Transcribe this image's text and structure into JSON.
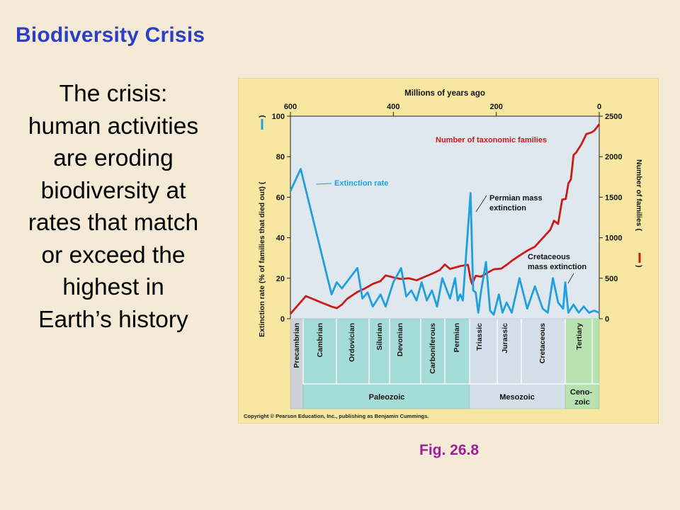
{
  "slide": {
    "title": "Biodiversity Crisis",
    "body_lines": [
      "The crisis:",
      "human activities",
      "are eroding",
      "biodiversity at",
      "rates that match",
      "or exceed the",
      "highest in",
      "Earth’s history"
    ],
    "caption": "Fig. 26.8"
  },
  "colors": {
    "title": "#2b3fc4",
    "caption": "#a0209a",
    "extinction_series": "#20a0dd",
    "families_series": "#cc1a1a",
    "figure_background": "#f7e7a1",
    "plot_background": "#dfe8ef",
    "paleozoic_band": "#a6dcd8",
    "mesozoic_band": "#d5dfe9",
    "cenozoic_band": "#b9e2b1",
    "precambrian_band": "#ccd2d6"
  },
  "chart_data": {
    "type": "line",
    "title": "",
    "top_axis": {
      "label": "Millions of years ago",
      "range": [
        600,
        0
      ],
      "ticks": [
        600,
        400,
        200,
        0
      ]
    },
    "left_axis": {
      "label": "Extinction rate (% of families that died out) (",
      "range": [
        0,
        100
      ],
      "ticks": [
        0,
        20,
        40,
        60,
        80,
        100
      ]
    },
    "right_axis": {
      "label": "Number of families (",
      "range": [
        0,
        2500
      ],
      "ticks": [
        0,
        500,
        1000,
        1500,
        2000,
        2500
      ]
    },
    "grid": false,
    "series": [
      {
        "name": "Extinction rate",
        "axis": "left",
        "points": [
          [
            600,
            63
          ],
          [
            580,
            74
          ],
          [
            520,
            12
          ],
          [
            510,
            18
          ],
          [
            500,
            15
          ],
          [
            470,
            25
          ],
          [
            460,
            10
          ],
          [
            450,
            13
          ],
          [
            440,
            6
          ],
          [
            425,
            12
          ],
          [
            415,
            6
          ],
          [
            400,
            18
          ],
          [
            385,
            25
          ],
          [
            375,
            11
          ],
          [
            365,
            14
          ],
          [
            355,
            9
          ],
          [
            345,
            18
          ],
          [
            335,
            9
          ],
          [
            325,
            14
          ],
          [
            315,
            6
          ],
          [
            305,
            20
          ],
          [
            290,
            10
          ],
          [
            280,
            20
          ],
          [
            275,
            9
          ],
          [
            270,
            12
          ],
          [
            265,
            9
          ],
          [
            250,
            62
          ],
          [
            245,
            14
          ],
          [
            240,
            13
          ],
          [
            235,
            3
          ],
          [
            230,
            13
          ],
          [
            220,
            28
          ],
          [
            212,
            4
          ],
          [
            205,
            2
          ],
          [
            195,
            12
          ],
          [
            188,
            3
          ],
          [
            180,
            8
          ],
          [
            170,
            3
          ],
          [
            155,
            20
          ],
          [
            140,
            5
          ],
          [
            125,
            16
          ],
          [
            110,
            5
          ],
          [
            100,
            3
          ],
          [
            90,
            20
          ],
          [
            80,
            8
          ],
          [
            70,
            5
          ],
          [
            66,
            18
          ],
          [
            60,
            3
          ],
          [
            50,
            7
          ],
          [
            40,
            3
          ],
          [
            30,
            6
          ],
          [
            20,
            3
          ],
          [
            10,
            4
          ],
          [
            0,
            3
          ]
        ]
      },
      {
        "name": "Number of taxonomic families",
        "axis": "right",
        "points": [
          [
            600,
            60
          ],
          [
            570,
            280
          ],
          [
            540,
            200
          ],
          [
            520,
            150
          ],
          [
            510,
            130
          ],
          [
            500,
            175
          ],
          [
            490,
            245
          ],
          [
            470,
            330
          ],
          [
            455,
            375
          ],
          [
            440,
            430
          ],
          [
            425,
            465
          ],
          [
            415,
            535
          ],
          [
            400,
            510
          ],
          [
            385,
            490
          ],
          [
            370,
            500
          ],
          [
            355,
            475
          ],
          [
            340,
            515
          ],
          [
            325,
            555
          ],
          [
            310,
            600
          ],
          [
            300,
            670
          ],
          [
            290,
            615
          ],
          [
            270,
            650
          ],
          [
            255,
            665
          ],
          [
            250,
            490
          ],
          [
            247,
            430
          ],
          [
            240,
            530
          ],
          [
            230,
            520
          ],
          [
            215,
            575
          ],
          [
            205,
            610
          ],
          [
            190,
            620
          ],
          [
            178,
            675
          ],
          [
            170,
            715
          ],
          [
            155,
            780
          ],
          [
            140,
            840
          ],
          [
            125,
            890
          ],
          [
            105,
            1030
          ],
          [
            95,
            1100
          ],
          [
            88,
            1210
          ],
          [
            80,
            1170
          ],
          [
            72,
            1470
          ],
          [
            65,
            1480
          ],
          [
            60,
            1670
          ],
          [
            55,
            1720
          ],
          [
            50,
            2020
          ],
          [
            45,
            2050
          ],
          [
            35,
            2150
          ],
          [
            25,
            2280
          ],
          [
            15,
            2300
          ],
          [
            10,
            2320
          ],
          [
            5,
            2360
          ],
          [
            0,
            2400
          ]
        ]
      }
    ],
    "annotations": [
      {
        "text": "Permian mass extinction",
        "lines": [
          "Permian mass",
          "extinction"
        ]
      },
      {
        "text": "Cretaceous mass extinction",
        "lines": [
          "Cretaceous",
          "mass extinction"
        ]
      }
    ],
    "geologic_periods": [
      "Precambrian",
      "Cambrian",
      "Ordovician",
      "Silurian",
      "Devonian",
      "Carboniferous",
      "Permian",
      "Triassic",
      "Jurassic",
      "Cretaceous",
      "Tertiary"
    ],
    "geologic_eras": [
      "Paleozoic",
      "Mesozoic",
      "Ceno-zoic"
    ],
    "copyright": "Copyright © Pearson Education, Inc., publishing as Benjamin Cummings."
  }
}
